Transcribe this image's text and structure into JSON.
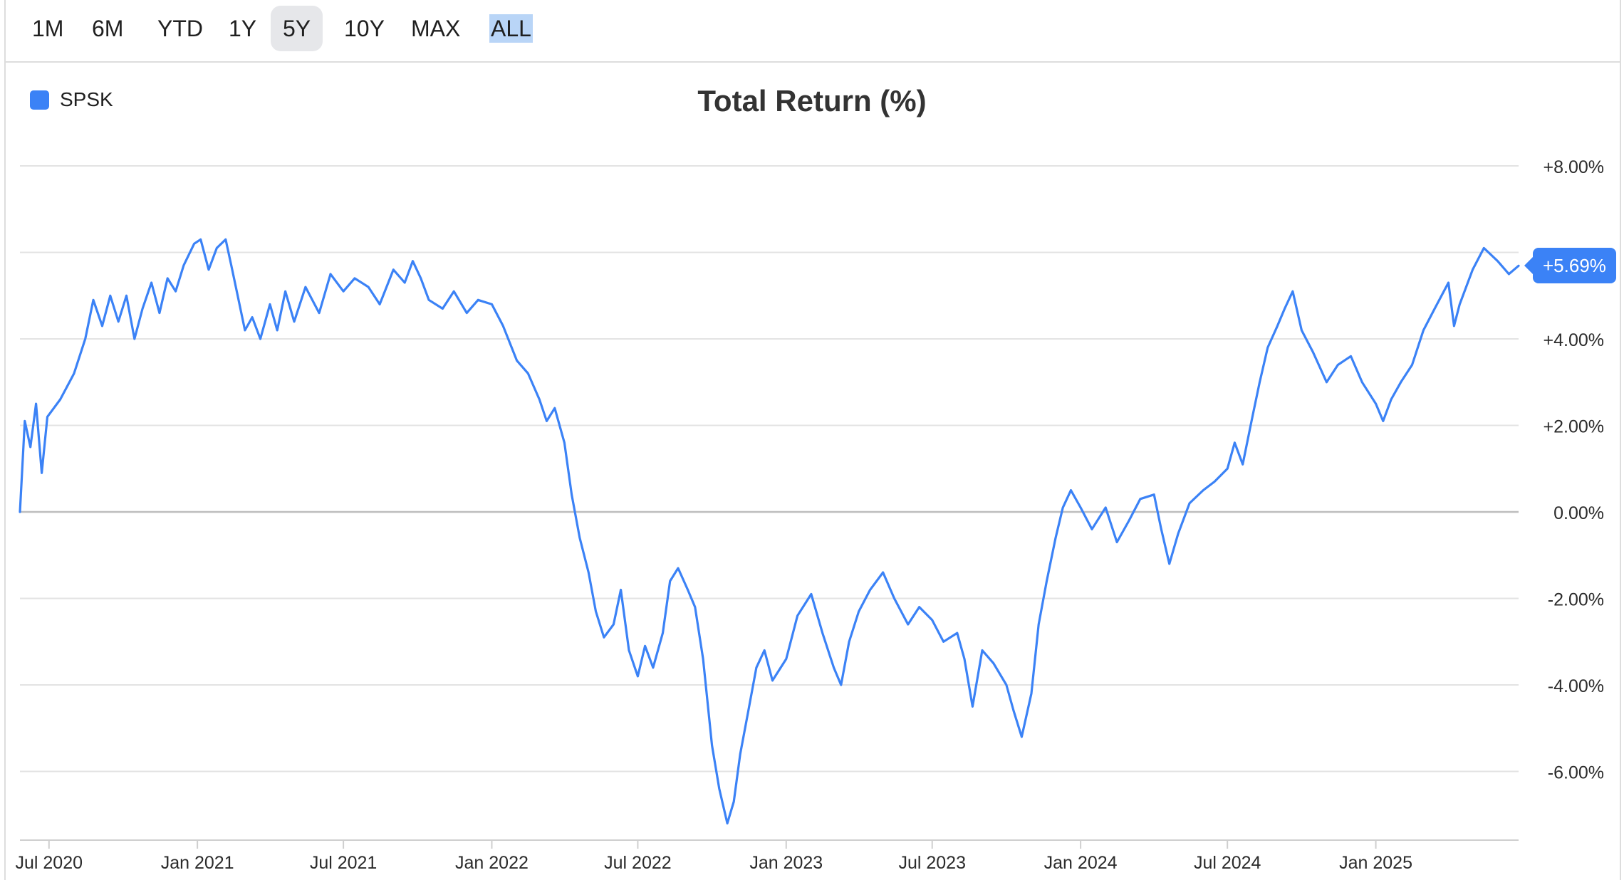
{
  "toolbar": {
    "ranges": [
      {
        "label": "1M"
      },
      {
        "label": "6M"
      },
      {
        "label": "YTD"
      },
      {
        "label": "1Y"
      },
      {
        "label": "5Y"
      },
      {
        "label": "10Y"
      },
      {
        "label": "MAX"
      },
      {
        "label": "ALL"
      }
    ],
    "active_range": "5Y",
    "highlighted_range": "ALL"
  },
  "legend": {
    "label": "SPSK",
    "color": "#3b82f6"
  },
  "last_value_badge": "+5.69%",
  "chart_data": {
    "type": "line",
    "title": "Total Return (%)",
    "y_tick_labels": [
      "+8.00%",
      "",
      "+4.00%",
      "+2.00%",
      "0.00%",
      "-2.00%",
      "-4.00%",
      "-6.00%"
    ],
    "y_tick_values": [
      8,
      6,
      4,
      2,
      0,
      -2,
      -4,
      -6
    ],
    "x_tick_labels": [
      "Jul 2020",
      "Jan 2021",
      "Jul 2021",
      "Jan 2022",
      "Jul 2022",
      "Jan 2023",
      "Jul 2023",
      "Jan 2024",
      "Jul 2024",
      "Jan 2025"
    ],
    "x_tick_dates": [
      "2020-07-01",
      "2021-01-01",
      "2021-07-01",
      "2022-01-01",
      "2022-07-01",
      "2023-01-01",
      "2023-07-01",
      "2024-01-01",
      "2024-07-01",
      "2025-01-01"
    ],
    "ylim": [
      -7.5,
      8.0
    ],
    "xlim": [
      "2020-05-26",
      "2025-06-27"
    ],
    "grid": true,
    "legend_position": "top-left",
    "series": [
      {
        "name": "SPSK",
        "color": "#3b82f6",
        "points": [
          [
            "2020-05-26",
            0.0
          ],
          [
            "2020-06-01",
            2.1
          ],
          [
            "2020-06-08",
            1.5
          ],
          [
            "2020-06-15",
            2.5
          ],
          [
            "2020-06-22",
            0.9
          ],
          [
            "2020-06-29",
            2.2
          ],
          [
            "2020-07-15",
            2.6
          ],
          [
            "2020-08-01",
            3.2
          ],
          [
            "2020-08-15",
            4.0
          ],
          [
            "2020-08-25",
            4.9
          ],
          [
            "2020-09-05",
            4.3
          ],
          [
            "2020-09-15",
            5.0
          ],
          [
            "2020-09-25",
            4.4
          ],
          [
            "2020-10-05",
            5.0
          ],
          [
            "2020-10-15",
            4.0
          ],
          [
            "2020-10-25",
            4.7
          ],
          [
            "2020-11-05",
            5.3
          ],
          [
            "2020-11-15",
            4.6
          ],
          [
            "2020-11-25",
            5.4
          ],
          [
            "2020-12-05",
            5.1
          ],
          [
            "2020-12-15",
            5.7
          ],
          [
            "2020-12-28",
            6.2
          ],
          [
            "2021-01-05",
            6.3
          ],
          [
            "2021-01-15",
            5.6
          ],
          [
            "2021-01-25",
            6.1
          ],
          [
            "2021-02-05",
            6.3
          ],
          [
            "2021-02-12",
            5.7
          ],
          [
            "2021-02-20",
            5.0
          ],
          [
            "2021-03-01",
            4.2
          ],
          [
            "2021-03-10",
            4.5
          ],
          [
            "2021-03-20",
            4.0
          ],
          [
            "2021-04-01",
            4.8
          ],
          [
            "2021-04-10",
            4.2
          ],
          [
            "2021-04-20",
            5.1
          ],
          [
            "2021-05-01",
            4.4
          ],
          [
            "2021-05-15",
            5.2
          ],
          [
            "2021-06-01",
            4.6
          ],
          [
            "2021-06-15",
            5.5
          ],
          [
            "2021-07-01",
            5.1
          ],
          [
            "2021-07-15",
            5.4
          ],
          [
            "2021-08-01",
            5.2
          ],
          [
            "2021-08-15",
            4.8
          ],
          [
            "2021-09-01",
            5.6
          ],
          [
            "2021-09-15",
            5.3
          ],
          [
            "2021-09-25",
            5.8
          ],
          [
            "2021-10-05",
            5.4
          ],
          [
            "2021-10-15",
            4.9
          ],
          [
            "2021-11-01",
            4.7
          ],
          [
            "2021-11-15",
            5.1
          ],
          [
            "2021-12-01",
            4.6
          ],
          [
            "2021-12-15",
            4.9
          ],
          [
            "2022-01-01",
            4.8
          ],
          [
            "2022-01-15",
            4.3
          ],
          [
            "2022-02-01",
            3.5
          ],
          [
            "2022-02-15",
            3.2
          ],
          [
            "2022-03-01",
            2.6
          ],
          [
            "2022-03-10",
            2.1
          ],
          [
            "2022-03-20",
            2.4
          ],
          [
            "2022-04-01",
            1.6
          ],
          [
            "2022-04-10",
            0.4
          ],
          [
            "2022-04-20",
            -0.6
          ],
          [
            "2022-05-01",
            -1.4
          ],
          [
            "2022-05-10",
            -2.3
          ],
          [
            "2022-05-20",
            -2.9
          ],
          [
            "2022-06-01",
            -2.6
          ],
          [
            "2022-06-10",
            -1.8
          ],
          [
            "2022-06-20",
            -3.2
          ],
          [
            "2022-07-01",
            -3.8
          ],
          [
            "2022-07-10",
            -3.1
          ],
          [
            "2022-07-20",
            -3.6
          ],
          [
            "2022-08-01",
            -2.8
          ],
          [
            "2022-08-10",
            -1.6
          ],
          [
            "2022-08-20",
            -1.3
          ],
          [
            "2022-09-01",
            -1.8
          ],
          [
            "2022-09-10",
            -2.2
          ],
          [
            "2022-09-20",
            -3.4
          ],
          [
            "2022-10-01",
            -5.4
          ],
          [
            "2022-10-10",
            -6.4
          ],
          [
            "2022-10-20",
            -7.2
          ],
          [
            "2022-10-28",
            -6.7
          ],
          [
            "2022-11-05",
            -5.6
          ],
          [
            "2022-11-15",
            -4.6
          ],
          [
            "2022-11-25",
            -3.6
          ],
          [
            "2022-12-05",
            -3.2
          ],
          [
            "2022-12-15",
            -3.9
          ],
          [
            "2023-01-01",
            -3.4
          ],
          [
            "2023-01-15",
            -2.4
          ],
          [
            "2023-02-01",
            -1.9
          ],
          [
            "2023-02-15",
            -2.8
          ],
          [
            "2023-03-01",
            -3.6
          ],
          [
            "2023-03-10",
            -4.0
          ],
          [
            "2023-03-20",
            -3.0
          ],
          [
            "2023-04-01",
            -2.3
          ],
          [
            "2023-04-15",
            -1.8
          ],
          [
            "2023-05-01",
            -1.4
          ],
          [
            "2023-05-15",
            -2.0
          ],
          [
            "2023-06-01",
            -2.6
          ],
          [
            "2023-06-15",
            -2.2
          ],
          [
            "2023-07-01",
            -2.5
          ],
          [
            "2023-07-15",
            -3.0
          ],
          [
            "2023-08-01",
            -2.8
          ],
          [
            "2023-08-10",
            -3.4
          ],
          [
            "2023-08-20",
            -4.5
          ],
          [
            "2023-09-01",
            -3.2
          ],
          [
            "2023-09-15",
            -3.5
          ],
          [
            "2023-10-01",
            -4.0
          ],
          [
            "2023-10-10",
            -4.6
          ],
          [
            "2023-10-20",
            -5.2
          ],
          [
            "2023-11-01",
            -4.2
          ],
          [
            "2023-11-10",
            -2.6
          ],
          [
            "2023-11-20",
            -1.6
          ],
          [
            "2023-12-01",
            -0.6
          ],
          [
            "2023-12-10",
            0.1
          ],
          [
            "2023-12-20",
            0.5
          ],
          [
            "2024-01-01",
            0.1
          ],
          [
            "2024-01-15",
            -0.4
          ],
          [
            "2024-02-01",
            0.1
          ],
          [
            "2024-02-15",
            -0.7
          ],
          [
            "2024-03-01",
            -0.2
          ],
          [
            "2024-03-15",
            0.3
          ],
          [
            "2024-04-01",
            0.4
          ],
          [
            "2024-04-10",
            -0.4
          ],
          [
            "2024-04-20",
            -1.2
          ],
          [
            "2024-05-01",
            -0.5
          ],
          [
            "2024-05-15",
            0.2
          ],
          [
            "2024-06-01",
            0.5
          ],
          [
            "2024-06-15",
            0.7
          ],
          [
            "2024-07-01",
            1.0
          ],
          [
            "2024-07-10",
            1.6
          ],
          [
            "2024-07-20",
            1.1
          ],
          [
            "2024-08-01",
            2.2
          ],
          [
            "2024-08-10",
            3.0
          ],
          [
            "2024-08-20",
            3.8
          ],
          [
            "2024-09-01",
            4.3
          ],
          [
            "2024-09-10",
            4.7
          ],
          [
            "2024-09-20",
            5.1
          ],
          [
            "2024-10-01",
            4.2
          ],
          [
            "2024-10-15",
            3.7
          ],
          [
            "2024-11-01",
            3.0
          ],
          [
            "2024-11-15",
            3.4
          ],
          [
            "2024-12-01",
            3.6
          ],
          [
            "2024-12-15",
            3.0
          ],
          [
            "2025-01-01",
            2.5
          ],
          [
            "2025-01-10",
            2.1
          ],
          [
            "2025-01-20",
            2.6
          ],
          [
            "2025-02-01",
            3.0
          ],
          [
            "2025-02-15",
            3.4
          ],
          [
            "2025-03-01",
            4.2
          ],
          [
            "2025-03-15",
            4.7
          ],
          [
            "2025-04-01",
            5.3
          ],
          [
            "2025-04-08",
            4.3
          ],
          [
            "2025-04-15",
            4.8
          ],
          [
            "2025-05-01",
            5.6
          ],
          [
            "2025-05-15",
            6.1
          ],
          [
            "2025-06-01",
            5.8
          ],
          [
            "2025-06-15",
            5.5
          ],
          [
            "2025-06-27",
            5.69
          ]
        ]
      }
    ]
  }
}
